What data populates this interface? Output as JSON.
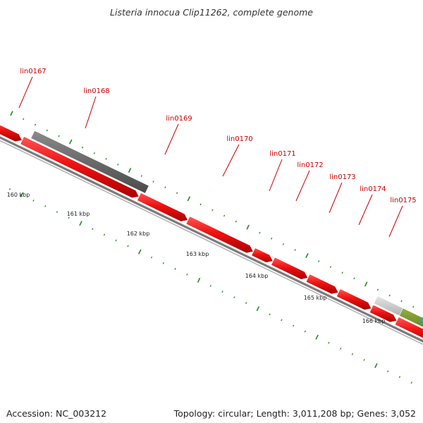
{
  "title": "Listeria innocua Clip11262, complete genome",
  "accession_label": "Accession: NC_003212",
  "topology_label": "Topology: circular; Length: 3,011,208 bp; Genes: 3,052",
  "colors": {
    "gene": "#ee1111",
    "gene_dark": "#aa0000",
    "gray_feature": "#666666",
    "light_feature": "#cccccc",
    "green_feature": "#6b8e23",
    "backbone": "#888888",
    "tick": "#228b22",
    "label": "#cc0000",
    "blue_feature": "#1fa8d8"
  },
  "genes": [
    {
      "name": "lin0167"
    },
    {
      "name": "lin0168"
    },
    {
      "name": "lin0169"
    },
    {
      "name": "lin0170"
    },
    {
      "name": "lin0171"
    },
    {
      "name": "lin0172"
    },
    {
      "name": "lin0173"
    },
    {
      "name": "lin0174"
    },
    {
      "name": "lin0175"
    }
  ],
  "kbp_labels": [
    "160 kbp",
    "161 kbp",
    "162 kbp",
    "163 kbp",
    "164 kbp",
    "165 kbp",
    "166 kbp"
  ]
}
